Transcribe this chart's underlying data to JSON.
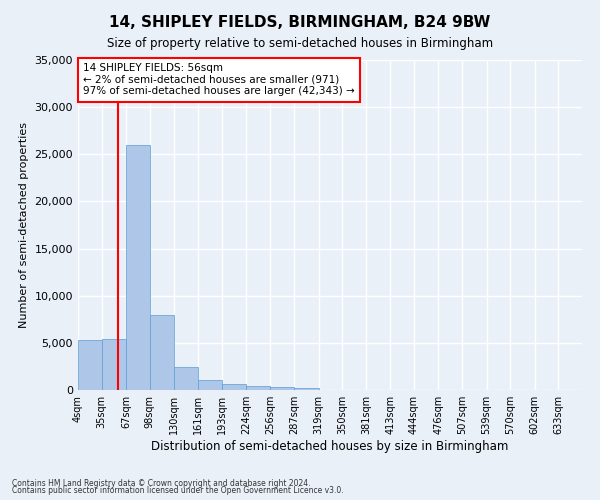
{
  "title": "14, SHIPLEY FIELDS, BIRMINGHAM, B24 9BW",
  "subtitle": "Size of property relative to semi-detached houses in Birmingham",
  "xlabel": "Distribution of semi-detached houses by size in Birmingham",
  "ylabel": "Number of semi-detached properties",
  "footnote1": "Contains HM Land Registry data © Crown copyright and database right 2024.",
  "footnote2": "Contains public sector information licensed under the Open Government Licence v3.0.",
  "annotation_line1": "14 SHIPLEY FIELDS: 56sqm",
  "annotation_line2": "← 2% of semi-detached houses are smaller (971)",
  "annotation_line3": "97% of semi-detached houses are larger (42,343) →",
  "bar_left_edges": [
    4,
    35,
    67,
    98,
    130,
    161,
    193,
    224,
    256,
    287,
    319,
    350,
    381,
    413,
    444,
    476,
    507,
    539,
    570,
    602
  ],
  "bar_widths": [
    31,
    32,
    31,
    32,
    31,
    32,
    31,
    32,
    31,
    32,
    31,
    31,
    32,
    31,
    32,
    31,
    32,
    31,
    32,
    31
  ],
  "bar_heights": [
    5300,
    5400,
    26000,
    8000,
    2400,
    1100,
    600,
    450,
    280,
    250,
    0,
    0,
    0,
    0,
    0,
    0,
    0,
    0,
    0,
    0
  ],
  "bar_color": "#aec6e8",
  "bar_edge_color": "#5a9fd4",
  "vline_x": 56,
  "vline_color": "red",
  "ylim": [
    0,
    35000
  ],
  "yticks": [
    0,
    5000,
    10000,
    15000,
    20000,
    25000,
    30000,
    35000
  ],
  "xtick_labels": [
    "4sqm",
    "35sqm",
    "67sqm",
    "98sqm",
    "130sqm",
    "161sqm",
    "193sqm",
    "224sqm",
    "256sqm",
    "287sqm",
    "319sqm",
    "350sqm",
    "381sqm",
    "413sqm",
    "444sqm",
    "476sqm",
    "507sqm",
    "539sqm",
    "570sqm",
    "602sqm",
    "633sqm"
  ],
  "bg_color": "#eaf0f8",
  "grid_color": "#ffffff",
  "annotation_box_color": "white",
  "annotation_box_edge": "red",
  "xlim_left": 4,
  "xlim_right": 664
}
